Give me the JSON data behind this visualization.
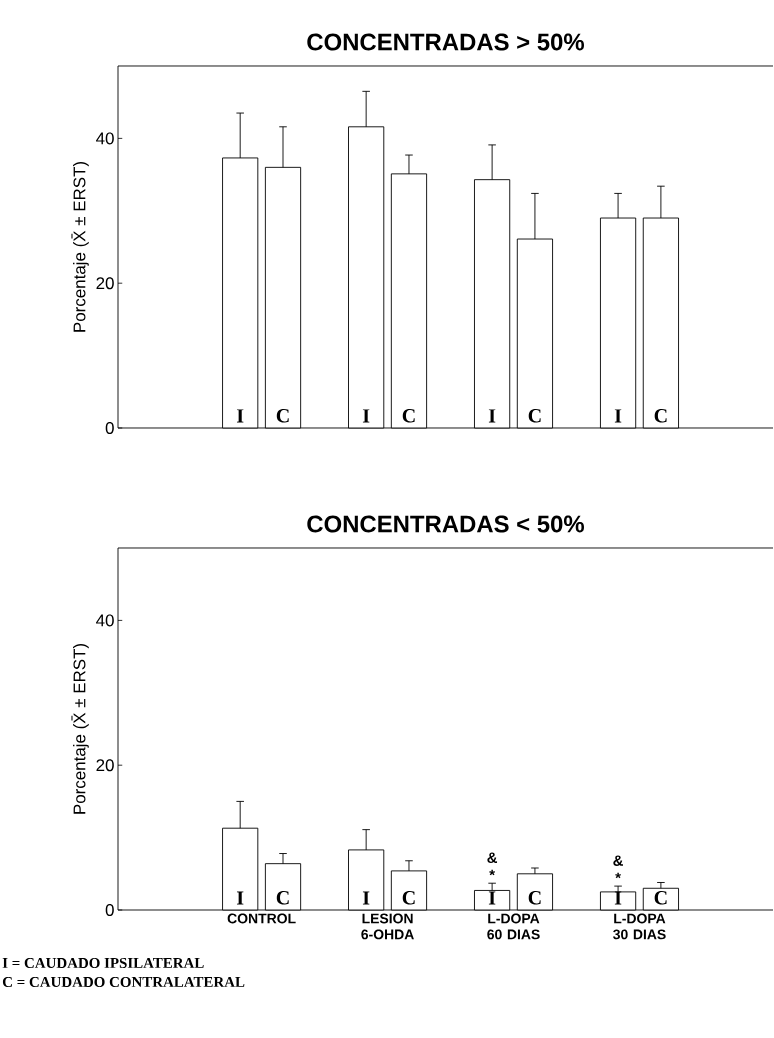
{
  "chart_data": [
    {
      "type": "bar",
      "title": "CONCENTRADAS  > 50%",
      "ylabel": "Porcentaje  (X̄ ± ERST)",
      "categories": [
        null,
        null,
        null,
        null
      ],
      "series": [
        {
          "name": "I",
          "color": "#ffffff",
          "values": [
            37.3,
            41.6,
            34.3,
            29.0
          ],
          "errors": [
            [
              37.3,
              43.5
            ],
            [
              41.6,
              46.5
            ],
            [
              34.3,
              39.1
            ],
            [
              29.0,
              32.4
            ]
          ]
        },
        {
          "name": "C",
          "color": "#ffffff",
          "values": [
            36.0,
            35.1,
            26.1,
            29.0
          ],
          "errors": [
            [
              36.0,
              41.6
            ],
            [
              35.1,
              37.7
            ],
            [
              26.1,
              32.4
            ],
            [
              29.0,
              33.4
            ]
          ]
        }
      ],
      "ylim": [
        0,
        50
      ],
      "yticks": [
        0,
        20,
        40
      ],
      "tick_labels": "y"
    },
    {
      "type": "bar",
      "title": "CONCENTRADAS  < 50%",
      "ylabel": "Porcentaje  (X̄ ± ERST)",
      "categories": [
        "CONTROL",
        "LESION 6-OHDA",
        "L-DOPA 60 DIAS",
        "L-DOPA 30 DIAS"
      ],
      "series": [
        {
          "name": "I",
          "color": "#ffffff",
          "values": [
            11.3,
            8.3,
            2.7,
            2.5
          ],
          "errors": [
            [
              11.3,
              15.0
            ],
            [
              8.3,
              11.1
            ],
            [
              2.7,
              3.7
            ],
            [
              2.5,
              3.3
            ]
          ]
        },
        {
          "name": "C",
          "color": "#ffffff",
          "values": [
            6.4,
            5.4,
            5.0,
            3.0
          ],
          "errors": [
            [
              6.4,
              7.8
            ],
            [
              5.4,
              6.8
            ],
            [
              5.0,
              5.8
            ],
            [
              3.0,
              3.8
            ]
          ]
        }
      ],
      "ylim": [
        0,
        50
      ],
      "yticks": [
        0,
        20,
        40
      ],
      "annotations": [
        {
          "text": "*",
          "x": "L-DOPA 60 DIAS",
          "y": 3.7
        },
        {
          "text": "&",
          "x": "L-DOPA 60 DIAS",
          "y": 3.7
        },
        {
          "text": "*",
          "x": "L-DOPA 30 DIAS",
          "y": 3.3
        },
        {
          "text": "&",
          "x": "L-DOPA 30 DIAS",
          "y": 3.3
        },
        "I = CAUDADO IPSILATERAL",
        "C = CAUDADO CONTRALATERAL"
      ]
    }
  ]
}
